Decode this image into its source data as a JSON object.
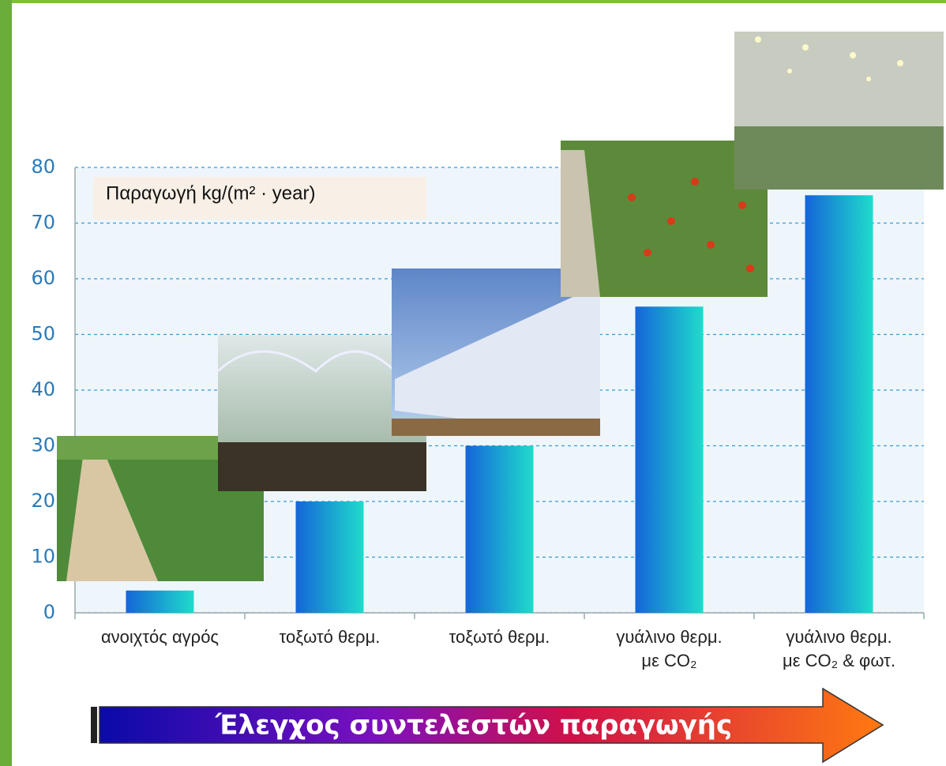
{
  "chart_data": {
    "type": "bar",
    "annotation": "Παραγωγή  kg/(m² · year)",
    "categories": [
      "ανοιχτός αγρός",
      "τοξωτό θερμ.",
      "τοξωτό θερμ.",
      "γυάλινο θερμ.\nμε CO₂",
      "γυάλινο θερμ.\nμε CO₂ & φωτ."
    ],
    "values": [
      4,
      20,
      30,
      55,
      75
    ],
    "color": "#1565d8",
    "ylim": [
      0,
      80
    ],
    "yticks": [
      0,
      10,
      20,
      30,
      40,
      50,
      60,
      70,
      80
    ],
    "grid": true,
    "arrow_label": "Έλεγχος συντελεστών παραγωγής"
  }
}
